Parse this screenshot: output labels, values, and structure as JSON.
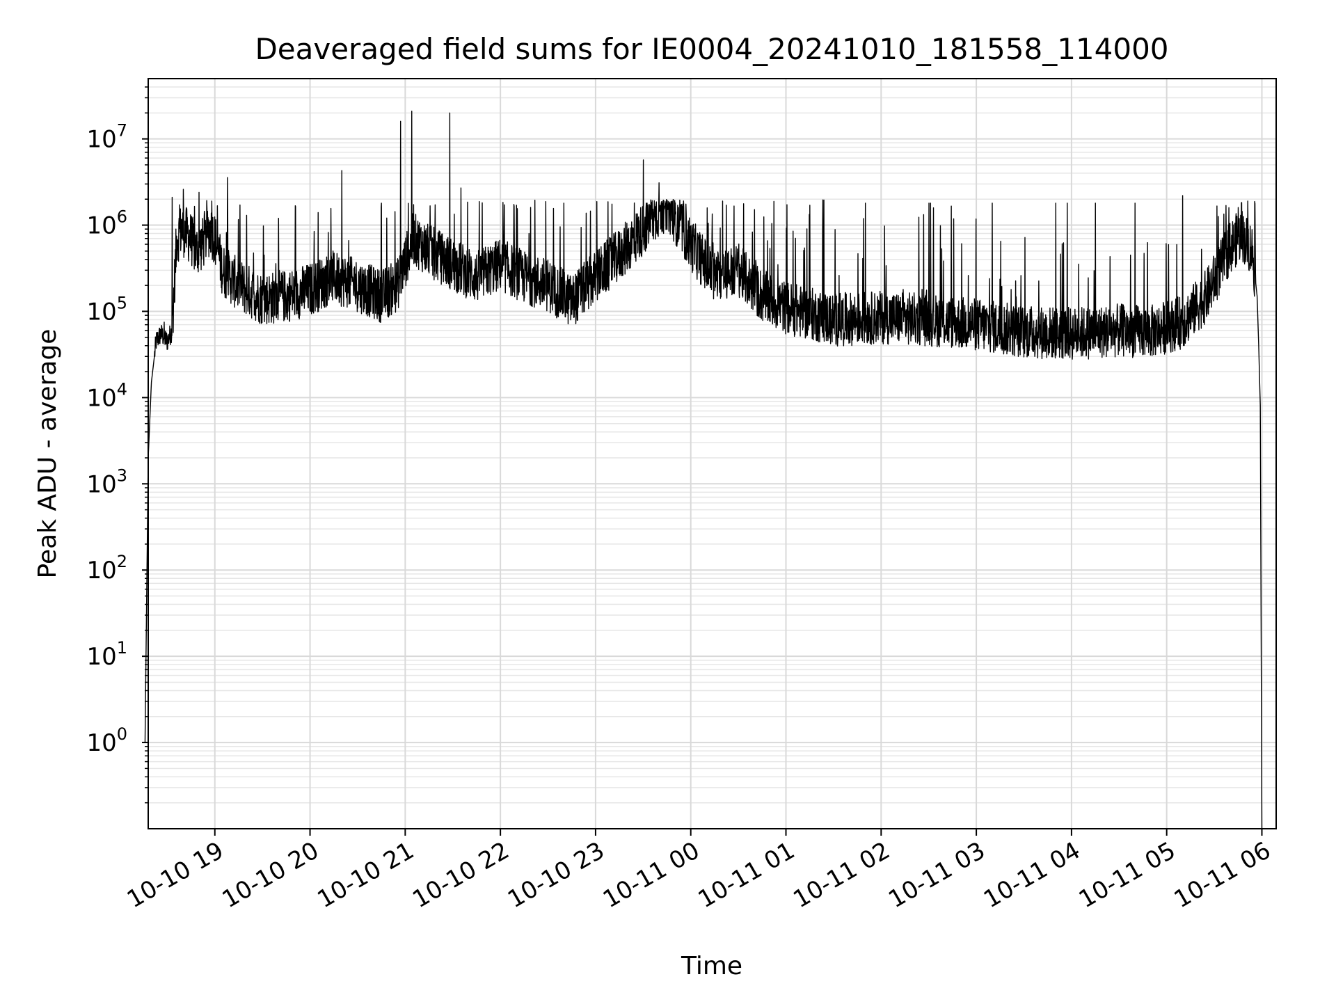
{
  "chart_data": {
    "type": "line",
    "title": "Deaveraged field sums for IE0004_20241010_181558_114000",
    "xlabel": "Time",
    "ylabel": "Peak ADU - average",
    "yscale": "log",
    "ylim": [
      0.1,
      50000000
    ],
    "xlim": [
      "2024-10-10 18:18",
      "2024-10-11 06:09"
    ],
    "grid": true,
    "line_color": "#000000",
    "x_ticks": [
      "10-10 19",
      "10-10 20",
      "10-10 21",
      "10-10 22",
      "10-10 23",
      "10-11 00",
      "10-11 01",
      "10-11 02",
      "10-11 03",
      "10-11 04",
      "10-11 05",
      "10-11 06"
    ],
    "x_tick_times": [
      "2024-10-10 19:00",
      "2024-10-10 20:00",
      "2024-10-10 21:00",
      "2024-10-10 22:00",
      "2024-10-10 23:00",
      "2024-10-11 00:00",
      "2024-10-11 01:00",
      "2024-10-11 02:00",
      "2024-10-11 03:00",
      "2024-10-11 04:00",
      "2024-10-11 05:00",
      "2024-10-11 06:00"
    ],
    "y_ticks": [
      {
        "base": "10",
        "exp": "0",
        "value": 1
      },
      {
        "base": "10",
        "exp": "1",
        "value": 10
      },
      {
        "base": "10",
        "exp": "2",
        "value": 100
      },
      {
        "base": "10",
        "exp": "3",
        "value": 1000
      },
      {
        "base": "10",
        "exp": "4",
        "value": 10000
      },
      {
        "base": "10",
        "exp": "5",
        "value": 100000
      },
      {
        "base": "10",
        "exp": "6",
        "value": 1000000
      },
      {
        "base": "10",
        "exp": "7",
        "value": 10000000
      }
    ],
    "series": [
      {
        "x": [
          "2024-10-10 18:16",
          "2024-10-10 18:18",
          "2024-10-10 18:20",
          "2024-10-10 18:23",
          "2024-10-10 18:26",
          "2024-10-10 18:30",
          "2024-10-10 18:33",
          "2024-10-10 18:36",
          "2024-10-10 18:39",
          "2024-10-10 18:42",
          "2024-10-10 18:45",
          "2024-10-10 18:48",
          "2024-10-10 18:52",
          "2024-10-10 18:57",
          "2024-10-10 19:00",
          "2024-10-10 19:05",
          "2024-10-10 19:15",
          "2024-10-10 19:30",
          "2024-10-10 19:45",
          "2024-10-10 20:00",
          "2024-10-10 20:15",
          "2024-10-10 20:30",
          "2024-10-10 20:45",
          "2024-10-10 20:55",
          "2024-10-10 21:05",
          "2024-10-10 21:15",
          "2024-10-10 21:30",
          "2024-10-10 21:45",
          "2024-10-10 22:00",
          "2024-10-10 22:15",
          "2024-10-10 22:30",
          "2024-10-10 22:45",
          "2024-10-10 23:00",
          "2024-10-10 23:15",
          "2024-10-10 23:30",
          "2024-10-10 23:45",
          "2024-10-11 00:00",
          "2024-10-11 00:15",
          "2024-10-11 00:30",
          "2024-10-11 00:45",
          "2024-10-11 01:00",
          "2024-10-11 01:30",
          "2024-10-11 02:00",
          "2024-10-11 02:30",
          "2024-10-11 03:00",
          "2024-10-11 03:30",
          "2024-10-11 04:00",
          "2024-10-11 04:30",
          "2024-10-11 04:50",
          "2024-10-11 05:10",
          "2024-10-11 05:25",
          "2024-10-11 05:40",
          "2024-10-11 05:47",
          "2024-10-11 05:54",
          "2024-10-11 05:57",
          "2024-10-11 05:58",
          "2024-10-11 05:59",
          "2024-10-11 06:00"
        ],
        "values": [
          1,
          2000,
          15000,
          45000,
          55000,
          45000,
          60000,
          700000,
          900000,
          800000,
          700000,
          500000,
          600000,
          900000,
          700000,
          300000,
          200000,
          140000,
          150000,
          180000,
          250000,
          200000,
          150000,
          200000,
          700000,
          500000,
          350000,
          250000,
          350000,
          250000,
          200000,
          130000,
          250000,
          450000,
          900000,
          1800000,
          600000,
          250000,
          300000,
          150000,
          110000,
          80000,
          85000,
          80000,
          70000,
          58000,
          55000,
          60000,
          58000,
          75000,
          150000,
          550000,
          800000,
          500000,
          150000,
          40000,
          8000,
          0.1
        ],
        "spikes": [
          {
            "x": "2024-10-10 18:28",
            "value": 75000
          },
          {
            "x": "2024-10-10 18:33",
            "value": 2100000
          },
          {
            "x": "2024-10-10 18:40",
            "value": 2600000
          },
          {
            "x": "2024-10-10 18:50",
            "value": 2400000
          },
          {
            "x": "2024-10-10 18:58",
            "value": 1900000
          },
          {
            "x": "2024-10-10 19:20",
            "value": 1300000
          },
          {
            "x": "2024-10-10 19:40",
            "value": 1200000
          },
          {
            "x": "2024-10-10 20:05",
            "value": 1400000
          },
          {
            "x": "2024-10-10 20:20",
            "value": 4300000
          },
          {
            "x": "2024-10-10 20:45",
            "value": 1800000
          },
          {
            "x": "2024-10-10 20:57",
            "value": 16000000
          },
          {
            "x": "2024-10-10 21:04",
            "value": 21000000
          },
          {
            "x": "2024-10-10 21:28",
            "value": 20000000
          },
          {
            "x": "2024-10-10 21:35",
            "value": 2700000
          },
          {
            "x": "2024-10-10 22:10",
            "value": 1700000
          },
          {
            "x": "2024-10-10 22:40",
            "value": 1800000
          },
          {
            "x": "2024-10-10 23:30",
            "value": 5700000
          },
          {
            "x": "2024-10-10 23:40",
            "value": 3100000
          },
          {
            "x": "2024-10-11 00:20",
            "value": 1900000
          },
          {
            "x": "2024-10-11 01:15",
            "value": 1700000
          },
          {
            "x": "2024-10-11 01:50",
            "value": 1800000
          },
          {
            "x": "2024-10-11 02:30",
            "value": 1800000
          },
          {
            "x": "2024-10-11 03:10",
            "value": 1800000
          },
          {
            "x": "2024-10-11 03:50",
            "value": 1800000
          },
          {
            "x": "2024-10-11 04:15",
            "value": 1800000
          },
          {
            "x": "2024-10-11 04:40",
            "value": 1800000
          },
          {
            "x": "2024-10-11 05:10",
            "value": 2200000
          },
          {
            "x": "2024-10-11 05:45",
            "value": 1600000
          }
        ]
      }
    ]
  }
}
